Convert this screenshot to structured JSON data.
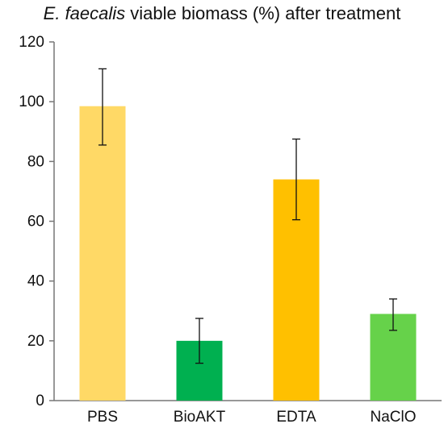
{
  "chart_data": {
    "type": "bar",
    "title_italic": "E. faecalis",
    "title_rest": " viable biomass (%) after treatment",
    "xlabel": "",
    "ylabel": "",
    "ylim": [
      0,
      120
    ],
    "yticks": [
      0,
      20,
      40,
      60,
      80,
      100,
      120
    ],
    "grid": false,
    "categories": [
      "PBS",
      "BioAKT",
      "EDTA",
      "NaClO"
    ],
    "values": [
      98.5,
      20,
      74,
      29
    ],
    "error_low": [
      85.5,
      12.5,
      60.5,
      23.5
    ],
    "error_high": [
      111,
      27.5,
      87.5,
      34
    ],
    "colors": [
      "#FFD966",
      "#00B050",
      "#FFC000",
      "#66D24A"
    ]
  }
}
